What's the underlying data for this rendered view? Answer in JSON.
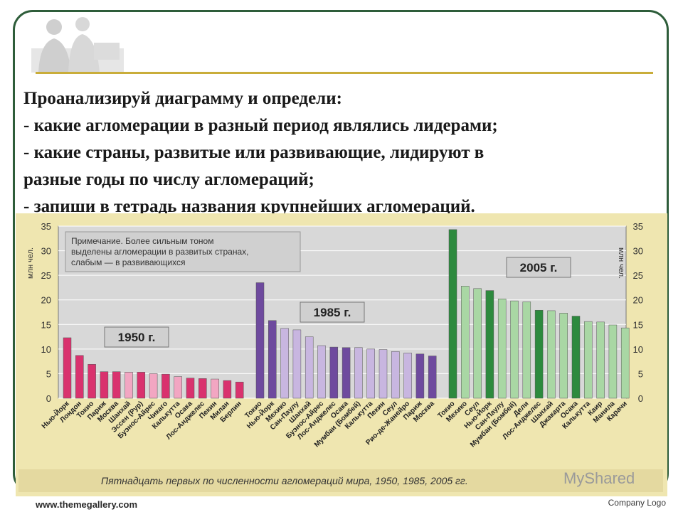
{
  "slide": {
    "task_lines": [
      "Проанализируй диаграмму и определи:",
      "- какие агломерации в разный период являлись лидерами;",
      "- какие страны, развитые или развивающие, лидируют в",
      "разные годы по числу агломераций;",
      "- запиши в тетрадь названия крупнейших агломераций."
    ],
    "footer_url": "www.themegallery.com",
    "footer_logo": "Company Logo",
    "watermark": "MyShared"
  },
  "colors": {
    "frame": "#2e5d3a",
    "gold_rule": "#c9ad3a",
    "chart_bg": "#d8d8d8",
    "page_bg": "#efe6b0"
  },
  "chart_data": {
    "type": "bar",
    "ylabel": "млн чел.",
    "ylim": [
      0,
      35
    ],
    "yticks": [
      0,
      5,
      10,
      15,
      20,
      25,
      30,
      35
    ],
    "note": [
      "Примечание. Более сильным тоном",
      "выделены агломерации в развитых странах,",
      "слабым — в развивающихся"
    ],
    "caption": "Пятнадцать первых по численности агломераций мира, 1950, 1985, 2005 гг.",
    "groups": [
      {
        "name": "1950 г.",
        "colors": {
          "developed": "#d9326e",
          "developing": "#f2a6c2"
        },
        "categories": [
          "Нью-Йорк",
          "Лондон",
          "Токио",
          "Париж",
          "Москва",
          "Шанхай",
          "Эссен (Рур)",
          "Буэнос-Айрес",
          "Чикаго",
          "Калькутта",
          "Осака",
          "Лос-Анджелес",
          "Пекин",
          "Милан",
          "Берлин"
        ],
        "values": [
          12.3,
          8.7,
          6.9,
          5.4,
          5.4,
          5.3,
          5.3,
          5.0,
          4.9,
          4.4,
          4.1,
          4.0,
          3.9,
          3.6,
          3.3
        ],
        "developed": [
          true,
          true,
          true,
          true,
          true,
          false,
          true,
          false,
          true,
          false,
          true,
          true,
          false,
          true,
          true
        ]
      },
      {
        "name": "1985 г.",
        "colors": {
          "developed": "#6e4a9e",
          "developing": "#c8b6e0"
        },
        "categories": [
          "Токио",
          "Нью-Йорк",
          "Мехико",
          "Сан-Паулу",
          "Шанхай",
          "Буэнос-Айрес",
          "Лос-Анджелес",
          "Осака",
          "Мумбаи (Бомбей)",
          "Калькутта",
          "Пекин",
          "Сеул",
          "Рио-де-Жанейро",
          "Париж",
          "Москва"
        ],
        "values": [
          23.5,
          15.8,
          14.2,
          13.9,
          12.5,
          10.7,
          10.4,
          10.3,
          10.3,
          10.0,
          9.9,
          9.5,
          9.2,
          9.0,
          8.6
        ],
        "developed": [
          true,
          true,
          false,
          false,
          false,
          false,
          true,
          true,
          false,
          false,
          false,
          false,
          false,
          true,
          true
        ]
      },
      {
        "name": "2005 г.",
        "colors": {
          "developed": "#2d8a3e",
          "developing": "#a9d7a4"
        },
        "categories": [
          "Токио",
          "Мехико",
          "Сеул",
          "Нью-Йорк",
          "Сан-Паулу",
          "Мумбаи (Бомбей)",
          "Дели",
          "Лос-Анджелес",
          "Шанхай",
          "Джакарта",
          "Осака",
          "Калькутта",
          "Каир",
          "Манила",
          "Карачи"
        ],
        "values": [
          34.3,
          22.8,
          22.3,
          21.9,
          20.2,
          19.8,
          19.6,
          17.9,
          17.8,
          17.3,
          16.7,
          15.6,
          15.5,
          14.9,
          14.3
        ],
        "developed": [
          true,
          false,
          false,
          true,
          false,
          false,
          false,
          true,
          false,
          false,
          true,
          false,
          false,
          false,
          false
        ]
      }
    ]
  }
}
